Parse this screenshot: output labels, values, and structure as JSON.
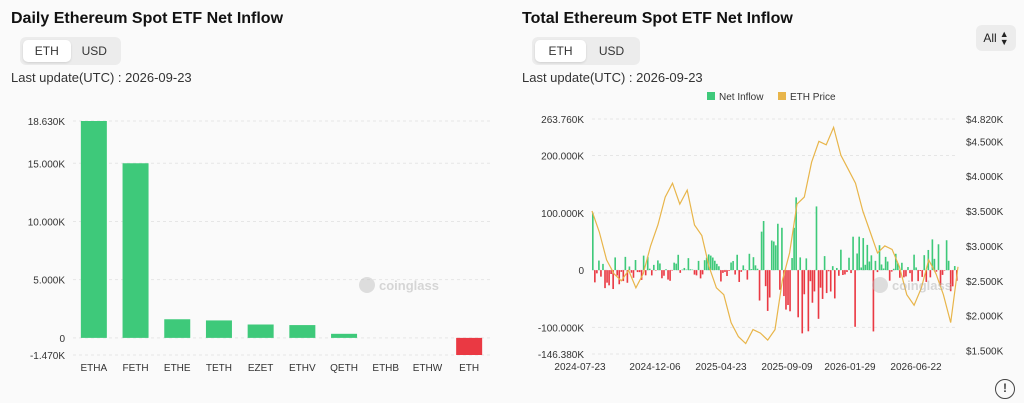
{
  "left_panel": {
    "title": "Daily Ethereum Spot ETF Net Inflow",
    "toggle": {
      "options": [
        "ETH",
        "USD"
      ],
      "selected": "ETH"
    },
    "last_update": "Last update(UTC) : 2026-09-23",
    "watermark": "coinglass"
  },
  "right_panel": {
    "title": "Total Ethereum Spot ETF Net Inflow",
    "toggle": {
      "options": [
        "ETH",
        "USD"
      ],
      "selected": "ETH"
    },
    "last_update": "Last update(UTC) : 2026-09-23",
    "range_select": "All",
    "watermark": "coinglass"
  },
  "chart_data": [
    {
      "type": "bar",
      "categories": [
        "ETHA",
        "FETH",
        "ETHE",
        "TETH",
        "EZET",
        "ETHV",
        "QETH",
        "ETHB",
        "ETHW",
        "ETH"
      ],
      "values": [
        18630,
        15000,
        1600,
        1500,
        1150,
        1100,
        350,
        0,
        0,
        -1470
      ],
      "yticks": [
        18630,
        15000,
        10000,
        5000,
        0,
        -1470
      ],
      "ytick_labels": [
        "18.630K",
        "15.000K",
        "10.000K",
        "5.000K",
        "0",
        "-1.470K"
      ],
      "ylim": [
        -1470,
        18630
      ],
      "colors": {
        "positive": "#3ec97a",
        "negative": "#ea3943"
      },
      "grid": true
    },
    {
      "type": "bar",
      "series": [
        {
          "name": "Net Inflow",
          "color": "#3ec97a",
          "negative_color": "#ea3943"
        },
        {
          "name": "ETH Price",
          "color": "#e8b54a"
        }
      ],
      "x_tick_labels": [
        "2024-07-23",
        "2024-12-06",
        "2025-04-23",
        "2025-09-09",
        "2026-01-29",
        "2026-06-22"
      ],
      "left_axis": {
        "ylim": [
          -146380,
          263760
        ],
        "ticks": [
          263760,
          200000,
          100000,
          0,
          -100000,
          -146380
        ],
        "labels": [
          "263.760K",
          "200.000K",
          "100.000K",
          "0",
          "-100.000K",
          "-146.380K"
        ]
      },
      "right_axis": {
        "ylim": [
          1450,
          4820
        ],
        "ticks": [
          4820,
          4500,
          4000,
          3500,
          3000,
          2500,
          2000,
          1500
        ],
        "labels": [
          "$4.820K",
          "$4.500K",
          "$4.000K",
          "$3.500K",
          "$3.000K",
          "$2.500K",
          "$2.000K",
          "$1.500K"
        ]
      },
      "price_points": [
        [
          0.0,
          3500
        ],
        [
          0.02,
          3200
        ],
        [
          0.04,
          2800
        ],
        [
          0.06,
          2600
        ],
        [
          0.08,
          2500
        ],
        [
          0.1,
          2650
        ],
        [
          0.12,
          2400
        ],
        [
          0.14,
          2600
        ],
        [
          0.16,
          3000
        ],
        [
          0.18,
          3300
        ],
        [
          0.2,
          3700
        ],
        [
          0.22,
          3900
        ],
        [
          0.24,
          3600
        ],
        [
          0.26,
          3800
        ],
        [
          0.28,
          3300
        ],
        [
          0.3,
          3150
        ],
        [
          0.32,
          2700
        ],
        [
          0.34,
          2400
        ],
        [
          0.36,
          2300
        ],
        [
          0.38,
          1900
        ],
        [
          0.4,
          1700
        ],
        [
          0.42,
          1600
        ],
        [
          0.44,
          1800
        ],
        [
          0.46,
          1750
        ],
        [
          0.48,
          1650
        ],
        [
          0.5,
          1800
        ],
        [
          0.52,
          2500
        ],
        [
          0.54,
          2900
        ],
        [
          0.56,
          3600
        ],
        [
          0.58,
          3700
        ],
        [
          0.6,
          4200
        ],
        [
          0.62,
          4500
        ],
        [
          0.64,
          4450
        ],
        [
          0.66,
          4700
        ],
        [
          0.68,
          4300
        ],
        [
          0.7,
          4100
        ],
        [
          0.72,
          3900
        ],
        [
          0.74,
          3500
        ],
        [
          0.76,
          3200
        ],
        [
          0.78,
          2900
        ],
        [
          0.8,
          3000
        ],
        [
          0.82,
          2950
        ],
        [
          0.84,
          2700
        ],
        [
          0.86,
          2300
        ],
        [
          0.88,
          2150
        ],
        [
          0.9,
          2400
        ],
        [
          0.92,
          2800
        ],
        [
          0.94,
          2600
        ],
        [
          0.96,
          2300
        ],
        [
          0.98,
          1900
        ],
        [
          1.0,
          2700
        ]
      ],
      "grid": true,
      "legend_placement": "top-center"
    }
  ]
}
